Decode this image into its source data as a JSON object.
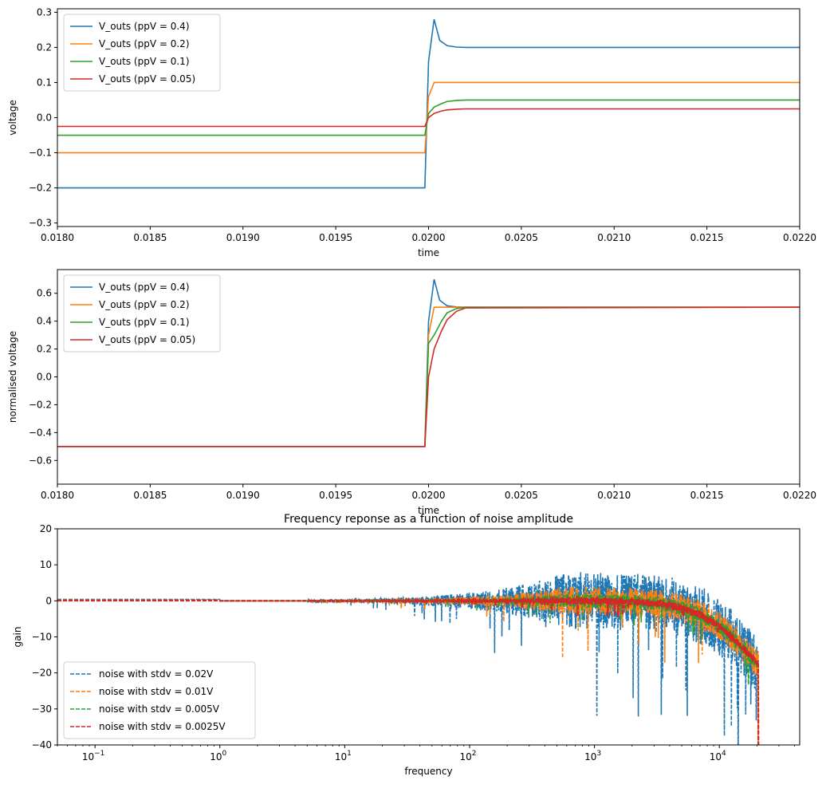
{
  "chart_data": [
    {
      "type": "line",
      "title": "",
      "xlabel": "time",
      "ylabel": "voltage",
      "xlim": [
        0.018,
        0.022
      ],
      "ylim": [
        -0.31,
        0.31
      ],
      "xticks": [
        0.018,
        0.0185,
        0.019,
        0.0195,
        0.02,
        0.0205,
        0.021,
        0.0215,
        0.022
      ],
      "xtick_labels": [
        "0.0180",
        "0.0185",
        "0.0190",
        "0.0195",
        "0.0200",
        "0.0205",
        "0.0210",
        "0.0215",
        "0.0220"
      ],
      "yticks": [
        -0.3,
        -0.2,
        -0.1,
        0.0,
        0.1,
        0.2,
        0.3
      ],
      "ytick_labels": [
        "−0.3",
        "−0.2",
        "−0.1",
        "0.0",
        "0.1",
        "0.2",
        "0.3"
      ],
      "grid": false,
      "legend_position": "upper-left",
      "series": [
        {
          "name": "V_outs (ppV = 0.4)",
          "color": "#1f77b4",
          "x": [
            0.018,
            0.01998,
            0.02,
            0.02003,
            0.02006,
            0.0201,
            0.02015,
            0.0202,
            0.022
          ],
          "y": [
            -0.2,
            -0.2,
            0.16,
            0.28,
            0.22,
            0.205,
            0.201,
            0.2,
            0.2
          ]
        },
        {
          "name": "V_outs (ppV = 0.2)",
          "color": "#ff7f0e",
          "x": [
            0.018,
            0.01998,
            0.02,
            0.02003,
            0.022
          ],
          "y": [
            -0.1,
            -0.1,
            0.06,
            0.1,
            0.1
          ]
        },
        {
          "name": "V_outs (ppV = 0.1)",
          "color": "#2ca02c",
          "x": [
            0.018,
            0.01998,
            0.02,
            0.02003,
            0.02007,
            0.0201,
            0.02015,
            0.0202,
            0.022
          ],
          "y": [
            -0.05,
            -0.05,
            0.012,
            0.03,
            0.04,
            0.046,
            0.049,
            0.05,
            0.05
          ]
        },
        {
          "name": "V_outs (ppV = 0.05)",
          "color": "#d62728",
          "x": [
            0.018,
            0.01998,
            0.02,
            0.02003,
            0.02007,
            0.0201,
            0.02015,
            0.0202,
            0.022
          ],
          "y": [
            -0.025,
            -0.025,
            0.0,
            0.012,
            0.019,
            0.022,
            0.024,
            0.025,
            0.025
          ]
        }
      ]
    },
    {
      "type": "line",
      "title": "",
      "xlabel": "time",
      "ylabel": "normalised voltage",
      "xlim": [
        0.018,
        0.022
      ],
      "ylim": [
        -0.77,
        0.77
      ],
      "xticks": [
        0.018,
        0.0185,
        0.019,
        0.0195,
        0.02,
        0.0205,
        0.021,
        0.0215,
        0.022
      ],
      "xtick_labels": [
        "0.0180",
        "0.0185",
        "0.0190",
        "0.0195",
        "0.0200",
        "0.0205",
        "0.0210",
        "0.0215",
        "0.0220"
      ],
      "yticks": [
        -0.6,
        -0.4,
        -0.2,
        0.0,
        0.2,
        0.4,
        0.6
      ],
      "ytick_labels": [
        "−0.6",
        "−0.4",
        "−0.2",
        "0.0",
        "0.2",
        "0.4",
        "0.6"
      ],
      "grid": false,
      "legend_position": "upper-left",
      "series": [
        {
          "name": "V_outs (ppV = 0.4)",
          "color": "#1f77b4",
          "x": [
            0.018,
            0.01998,
            0.02,
            0.02003,
            0.02006,
            0.0201,
            0.02015,
            0.0202,
            0.022
          ],
          "y": [
            -0.5,
            -0.5,
            0.4,
            0.7,
            0.55,
            0.51,
            0.502,
            0.5,
            0.5
          ]
        },
        {
          "name": "V_outs (ppV = 0.2)",
          "color": "#ff7f0e",
          "x": [
            0.018,
            0.01998,
            0.02,
            0.02003,
            0.022
          ],
          "y": [
            -0.5,
            -0.5,
            0.3,
            0.5,
            0.5
          ]
        },
        {
          "name": "V_outs (ppV = 0.1)",
          "color": "#2ca02c",
          "x": [
            0.018,
            0.01998,
            0.02,
            0.02003,
            0.02007,
            0.0201,
            0.02015,
            0.0202,
            0.022
          ],
          "y": [
            -0.5,
            -0.5,
            0.24,
            0.3,
            0.4,
            0.46,
            0.49,
            0.5,
            0.5
          ]
        },
        {
          "name": "V_outs (ppV = 0.05)",
          "color": "#d62728",
          "x": [
            0.018,
            0.01998,
            0.02,
            0.02003,
            0.02007,
            0.0201,
            0.02015,
            0.0202,
            0.022
          ],
          "y": [
            -0.5,
            -0.5,
            0.0,
            0.2,
            0.33,
            0.41,
            0.47,
            0.495,
            0.5
          ]
        }
      ]
    },
    {
      "type": "line",
      "title": "Frequency reponse as a function of noise amplitude",
      "xlabel": "frequency",
      "ylabel": "gain",
      "xscale": "log",
      "xlim": [
        0.05,
        44000
      ],
      "ylim": [
        -40,
        20
      ],
      "xticks": [
        0.1,
        1,
        10,
        100,
        1000,
        10000
      ],
      "xtick_labels": [
        [
          "10",
          "−1"
        ],
        [
          "10",
          "0"
        ],
        [
          "10",
          "1"
        ],
        [
          "10",
          "2"
        ],
        [
          "10",
          "3"
        ],
        [
          "10",
          "4"
        ]
      ],
      "yticks": [
        -40,
        -30,
        -20,
        -10,
        0,
        10,
        20
      ],
      "ytick_labels": [
        "−40",
        "−30",
        "−20",
        "−10",
        "0",
        "10",
        "20"
      ],
      "grid": false,
      "legend_position": "lower-left",
      "series": [
        {
          "name": "noise with stdv = 0.02V",
          "color": "#1f77b4",
          "dash": true,
          "noise_db_scale": 8,
          "rolloff": true
        },
        {
          "name": "noise with stdv = 0.01V",
          "color": "#ff7f0e",
          "dash": true,
          "noise_db_scale": 4,
          "rolloff": true
        },
        {
          "name": "noise with stdv = 0.005V",
          "color": "#2ca02c",
          "dash": true,
          "noise_db_scale": 2,
          "rolloff": true
        },
        {
          "name": "noise with stdv = 0.0025V",
          "color": "#d62728",
          "dash": true,
          "noise_db_scale": 1,
          "rolloff": true
        }
      ]
    }
  ]
}
